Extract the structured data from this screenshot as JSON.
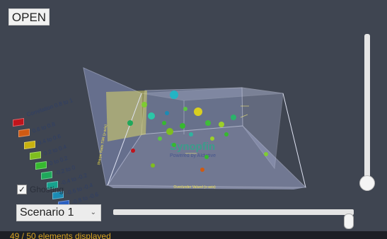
{
  "toolbar": {
    "open_label": "OPEN"
  },
  "legend": {
    "items": [
      {
        "label": "Correlation 0.8 to 1",
        "color": "#c0141c"
      },
      {
        "label": "0.6 to 0.8",
        "color": "#cf5a12"
      },
      {
        "label": "0.4 to 0.6",
        "color": "#c8b10e"
      },
      {
        "label": "0.2 to 0.4",
        "color": "#7fbe1e"
      },
      {
        "label": "0 to 0.2",
        "color": "#36b92f"
      },
      {
        "label": "-0.2 to 0",
        "color": "#1fa85b"
      },
      {
        "label": "-0.4 to -0.2",
        "color": "#17a28e"
      },
      {
        "label": "-0.6 to -0.4",
        "color": "#1b8bb4"
      },
      {
        "label": "-0.8 to -0.6",
        "color": "#2a5fc0"
      }
    ]
  },
  "axes": {
    "x_label": "Over/under Valued (x-axis)",
    "y_label": "Sharpe Ratio TSR (y-axis)"
  },
  "watermark": {
    "brand": "Synopfin",
    "tagline": "Powered by AIdictive"
  },
  "ghosting": {
    "label": "Ghosting",
    "checked": true
  },
  "scenario": {
    "selected": "Scenario 1"
  },
  "sliders": {
    "vertical_level": 0.0,
    "horizontal_level": 1.0
  },
  "status": {
    "text": "49 / 50 elements displayed"
  }
}
